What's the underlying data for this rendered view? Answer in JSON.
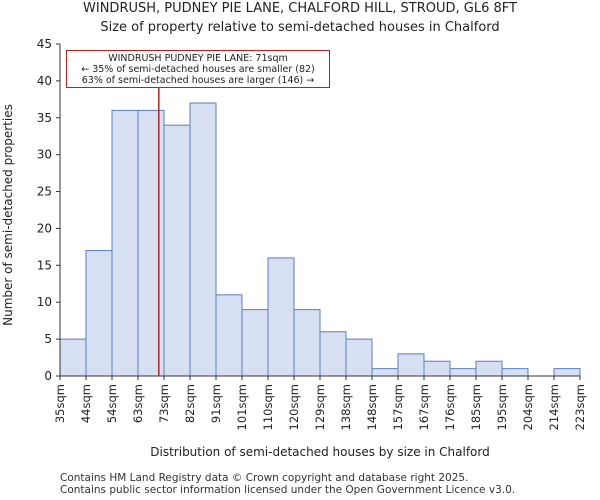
{
  "title_line1": "WINDRUSH, PUDNEY PIE LANE, CHALFORD HILL, STROUD, GL6 8FT",
  "title_line2": "Size of property relative to semi-detached houses in Chalford",
  "annotation": {
    "line1": "WINDRUSH PUDNEY PIE LANE: 71sqm",
    "line2": "← 35% of semi-detached houses are smaller (82)",
    "line3": "63% of semi-detached houses are larger (146) →"
  },
  "footer": {
    "line1": "Contains HM Land Registry data © Crown copyright and database right 2025.",
    "line2": "Contains public sector information licensed under the Open Government Licence v3.0."
  },
  "colors": {
    "bar_fill": "#d6e0f2",
    "bar_stroke": "#5b7fbf",
    "marker_line": "#b22222",
    "axis": "#333333"
  },
  "chart_data": {
    "type": "bar",
    "title": "Size of property relative to semi-detached houses in Chalford",
    "xlabel": "Distribution of semi-detached houses by size in Chalford",
    "ylabel": "Number of semi-detached properties",
    "bin_edges": [
      "35sqm",
      "44sqm",
      "54sqm",
      "63sqm",
      "73sqm",
      "82sqm",
      "91sqm",
      "101sqm",
      "110sqm",
      "120sqm",
      "129sqm",
      "138sqm",
      "148sqm",
      "157sqm",
      "167sqm",
      "176sqm",
      "185sqm",
      "195sqm",
      "204sqm",
      "214sqm",
      "223sqm"
    ],
    "values": [
      5,
      17,
      36,
      36,
      34,
      37,
      11,
      9,
      16,
      9,
      6,
      5,
      1,
      3,
      2,
      1,
      2,
      1,
      0,
      1
    ],
    "yticks": [
      0,
      5,
      10,
      15,
      20,
      25,
      30,
      35,
      40,
      45
    ],
    "ylim": [
      0,
      45
    ],
    "marker_value_sqm": 71,
    "grid": false
  }
}
